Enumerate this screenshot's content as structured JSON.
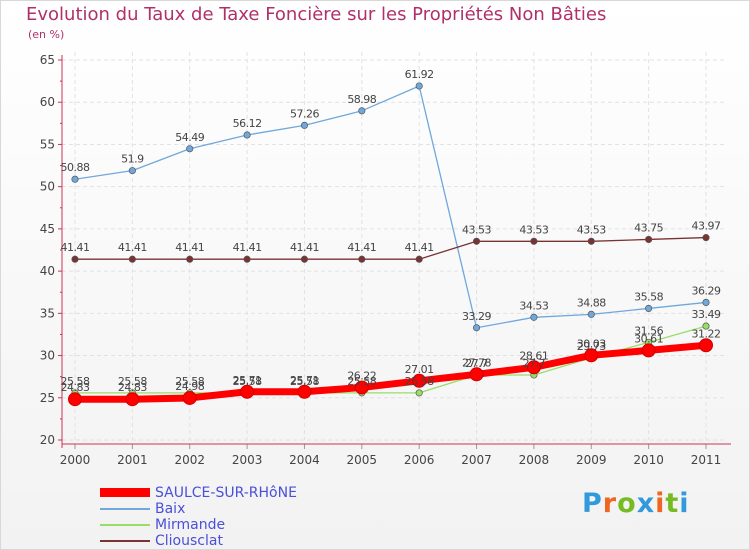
{
  "chart_data": {
    "type": "line",
    "title": "Evolution du Taux de Taxe Foncière sur les Propriétés Non Bâties",
    "ylabel": "(en %)",
    "xlabel": "",
    "ylim": [
      20,
      65
    ],
    "yticks": [
      20,
      25,
      30,
      35,
      40,
      45,
      50,
      55,
      60,
      65
    ],
    "grid": true,
    "categories": [
      "2000",
      "2001",
      "2002",
      "2003",
      "2004",
      "2005",
      "2006",
      "2007",
      "2008",
      "2009",
      "2010",
      "2011"
    ],
    "series": [
      {
        "name": "SAULCE-SUR-RHôNE",
        "color": "#ff0000",
        "values": [
          24.83,
          24.83,
          24.98,
          25.71,
          25.71,
          26.22,
          27.01,
          27.78,
          28.61,
          30.03,
          30.61,
          31.22
        ],
        "labels": [
          "24.83",
          "24.83",
          "24.98",
          "25.71",
          "25.71",
          "26.22",
          "27.01",
          "27.78",
          "28.61",
          "30.03",
          "30.61",
          "31.22"
        ]
      },
      {
        "name": "Baix",
        "color": "#6fa8dc",
        "values": [
          50.88,
          51.9,
          54.49,
          56.12,
          57.26,
          58.98,
          61.92,
          33.29,
          34.53,
          34.88,
          35.58,
          36.29
        ],
        "labels": [
          "50.88",
          "51.9",
          "54.49",
          "56.12",
          "57.26",
          "58.98",
          "61.92",
          "33.29",
          "34.53",
          "34.88",
          "35.58",
          "36.29"
        ]
      },
      {
        "name": "Mirmande",
        "color": "#99dd66",
        "values": [
          25.58,
          25.58,
          25.58,
          25.58,
          25.58,
          25.58,
          25.58,
          27.7,
          27.7,
          29.73,
          31.56,
          33.49
        ],
        "labels": [
          "25.58",
          "25.58",
          "25.58",
          "25.58",
          "25.58",
          "25.58",
          "25.58",
          "27.7",
          "27.7",
          "29.73",
          "31.56",
          "33.49"
        ]
      },
      {
        "name": "Cliousclat",
        "color": "#7a3333",
        "values": [
          41.41,
          41.41,
          41.41,
          41.41,
          41.41,
          41.41,
          41.41,
          43.53,
          43.53,
          43.53,
          43.75,
          43.97
        ],
        "labels": [
          "41.41",
          "41.41",
          "41.41",
          "41.41",
          "41.41",
          "41.41",
          "41.41",
          "43.53",
          "43.53",
          "43.53",
          "43.75",
          "43.97"
        ]
      }
    ]
  },
  "brand": {
    "letters": [
      "P",
      "r",
      "o",
      "x",
      "i",
      "t",
      "i"
    ],
    "colors": [
      "#3399dd",
      "#ee6622",
      "#77bb22",
      "#3399dd",
      "#ee6622",
      "#77bb22",
      "#3399dd"
    ]
  }
}
